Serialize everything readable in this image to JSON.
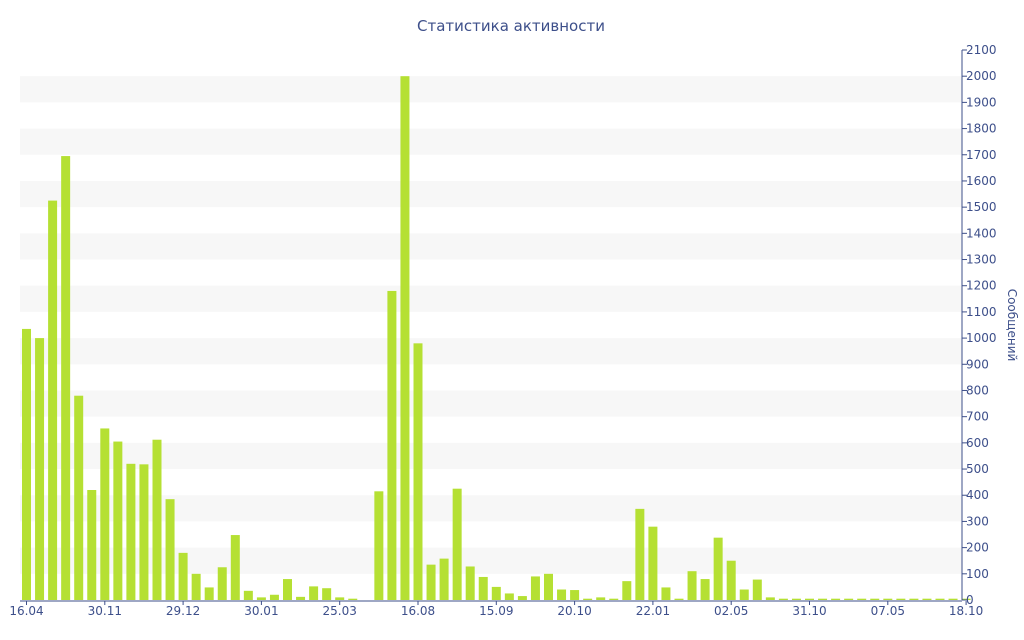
{
  "chart_data": {
    "type": "bar",
    "title": "Статистика активности",
    "ylabel": "Сообщений",
    "xlabel": "",
    "ylim": [
      0,
      2100
    ],
    "y_ticks": [
      0,
      100,
      200,
      300,
      400,
      500,
      600,
      700,
      800,
      900,
      1000,
      1100,
      1200,
      1300,
      1400,
      1500,
      1600,
      1700,
      1800,
      1900,
      2000,
      2100
    ],
    "x_tick_labels": [
      "16.04",
      "30.11",
      "29.12",
      "30.01",
      "25.03",
      "16.08",
      "15.09",
      "20.10",
      "22.01",
      "02.05",
      "31.10",
      "07.05",
      "18.10"
    ],
    "x_tick_index": [
      0,
      6,
      12,
      18,
      24,
      30,
      36,
      42,
      48,
      54,
      60,
      66,
      72
    ],
    "grid": true,
    "legend": "none",
    "bar_color": "#b5e033",
    "values": [
      1035,
      1000,
      1525,
      1695,
      780,
      420,
      655,
      605,
      520,
      518,
      612,
      385,
      180,
      100,
      48,
      125,
      248,
      35,
      10,
      20,
      80,
      12,
      52,
      45,
      10,
      5,
      0,
      415,
      1180,
      2000,
      980,
      135,
      158,
      425,
      128,
      88,
      50,
      25,
      15,
      90,
      100,
      40,
      38,
      5,
      10,
      5,
      72,
      348,
      280,
      48,
      5,
      110,
      80,
      238,
      150,
      40,
      78,
      10,
      5,
      5,
      5,
      5,
      5,
      5,
      5,
      5,
      5,
      5,
      5,
      5,
      5,
      5,
      5
    ]
  }
}
